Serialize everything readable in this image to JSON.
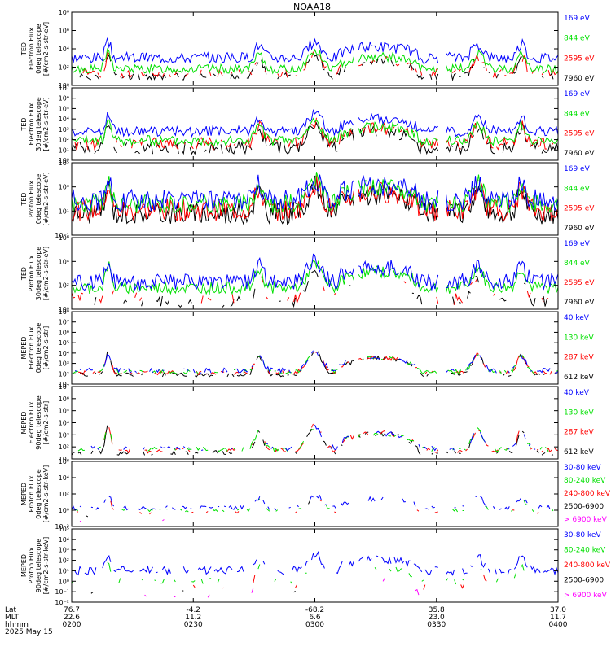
{
  "title": "NOAA18",
  "colors": {
    "blue": "#0000ff",
    "red": "#ff0000",
    "green": "#00e000",
    "black": "#000000",
    "magenta": "#ff00ff"
  },
  "x_axis": {
    "row_labels": [
      "Lat",
      "MLT",
      "hhmm"
    ],
    "ticks": [
      {
        "lat": "76.7",
        "mlt": "22.6",
        "hhmm": "0200"
      },
      {
        "lat": "-4.2",
        "mlt": "11.2",
        "hhmm": "0230"
      },
      {
        "lat": "-68.2",
        "mlt": "6.6",
        "hhmm": "0300"
      },
      {
        "lat": "35.8",
        "mlt": "23.0",
        "hhmm": "0330"
      },
      {
        "lat": "37.0",
        "mlt": "11.7",
        "hhmm": "0400"
      }
    ],
    "date": "2025 May 15"
  },
  "chart_data": [
    {
      "type": "line",
      "ylabel": [
        "TED",
        "Electron Flux",
        "0deg telescope",
        "[#/cm2-s-str-eV]"
      ],
      "ytick_labels": [
        "10⁰",
        "10²",
        "10⁴",
        "10⁶",
        "10⁸"
      ],
      "ylim_exp": [
        0,
        8
      ],
      "series": [
        {
          "name": "7960 eV",
          "color": "#000000",
          "level": 1.0,
          "amp": 0.4,
          "seed": 11,
          "sparse": 0.35
        },
        {
          "name": "2595 eV",
          "color": "#ff0000",
          "level": 1.3,
          "amp": 0.5,
          "seed": 12,
          "sparse": 0.35
        },
        {
          "name": "844 eV",
          "color": "#00e000",
          "level": 1.8,
          "amp": 0.5,
          "seed": 13,
          "sparse": 0.0
        },
        {
          "name": "169 eV",
          "color": "#0000ff",
          "level": 3.0,
          "amp": 0.6,
          "seed": 14,
          "sparse": 0.0
        }
      ]
    },
    {
      "type": "line",
      "ylabel": [
        "TED",
        "Electron Flux",
        "30deg telescope",
        "[#/cm2-s-str-eV]"
      ],
      "ytick_labels": [
        "10⁰",
        "10¹",
        "10²",
        "10³",
        "10⁴",
        "10⁵",
        "10⁶",
        "10⁷"
      ],
      "ylim_exp": [
        0,
        7
      ],
      "series": [
        {
          "name": "7960 eV",
          "color": "#000000",
          "level": 1.2,
          "amp": 0.6,
          "seed": 21,
          "sparse": 0.2
        },
        {
          "name": "2595 eV",
          "color": "#ff0000",
          "level": 1.6,
          "amp": 0.6,
          "seed": 22,
          "sparse": 0.2
        },
        {
          "name": "844 eV",
          "color": "#00e000",
          "level": 1.9,
          "amp": 0.5,
          "seed": 23,
          "sparse": 0.0
        },
        {
          "name": "169 eV",
          "color": "#0000ff",
          "level": 2.8,
          "amp": 0.5,
          "seed": 24,
          "sparse": 0.0
        }
      ]
    },
    {
      "type": "line",
      "ylabel": [
        "TED",
        "Proton Flux",
        "0deg telescope",
        "[#/cm2-s-str-eV]"
      ],
      "ytick_labels": [
        "10⁻¹",
        "10¹",
        "10³",
        "10⁵"
      ],
      "ylim_exp": [
        -1,
        5
      ],
      "series": [
        {
          "name": "7960 eV",
          "color": "#000000",
          "level": 0.8,
          "amp": 0.9,
          "seed": 31,
          "sparse": 0.0
        },
        {
          "name": "2595 eV",
          "color": "#ff0000",
          "level": 1.1,
          "amp": 0.9,
          "seed": 32,
          "sparse": 0.0
        },
        {
          "name": "844 eV",
          "color": "#00e000",
          "level": 1.6,
          "amp": 0.8,
          "seed": 33,
          "sparse": 0.0
        },
        {
          "name": "169 eV",
          "color": "#0000ff",
          "level": 1.9,
          "amp": 0.9,
          "seed": 34,
          "sparse": 0.0
        }
      ]
    },
    {
      "type": "line",
      "ylabel": [
        "TED",
        "Proton Flux",
        "30deg telescope",
        "[#/cm2-s-str-eV]"
      ],
      "ytick_labels": [
        "10⁰",
        "10²",
        "10⁴",
        "10⁶"
      ],
      "ylim_exp": [
        0,
        6
      ],
      "series": [
        {
          "name": "7960 eV",
          "color": "#000000",
          "level": 0.6,
          "amp": 0.5,
          "seed": 41,
          "sparse": 0.6
        },
        {
          "name": "2595 eV",
          "color": "#ff0000",
          "level": 0.9,
          "amp": 0.5,
          "seed": 42,
          "sparse": 0.6
        },
        {
          "name": "844 eV",
          "color": "#00e000",
          "level": 1.8,
          "amp": 0.5,
          "seed": 43,
          "sparse": 0.0
        },
        {
          "name": "169 eV",
          "color": "#0000ff",
          "level": 2.3,
          "amp": 0.7,
          "seed": 44,
          "sparse": 0.0
        }
      ]
    },
    {
      "type": "line",
      "ylabel": [
        "MEPED",
        "Electron Flux",
        "0deg telescope",
        "[#/cm2-s-str]"
      ],
      "ytick_labels": [
        "10¹",
        "10²",
        "10³",
        "10⁴",
        "10⁵",
        "10⁶",
        "10⁷",
        "10⁸"
      ],
      "ylim_exp": [
        1,
        8
      ],
      "series": [
        {
          "name": "612 keV",
          "color": "#000000",
          "level": 1.9,
          "amp": 0.2,
          "seed": 51,
          "sparse": 0.4
        },
        {
          "name": "287 keV",
          "color": "#ff0000",
          "level": 2.1,
          "amp": 0.2,
          "seed": 52,
          "sparse": 0.4
        },
        {
          "name": "130 keV",
          "color": "#00e000",
          "level": 2.2,
          "amp": 0.2,
          "seed": 53,
          "sparse": 0.4
        },
        {
          "name": "40 keV",
          "color": "#0000ff",
          "level": 2.3,
          "amp": 0.25,
          "seed": 54,
          "sparse": 0.4
        }
      ]
    },
    {
      "type": "line",
      "ylabel": [
        "MEPED",
        "Electron Flux",
        "90deg telescope",
        "[#/cm2-s-str]"
      ],
      "ytick_labels": [
        "10¹",
        "10²",
        "10³",
        "10⁴",
        "10⁵",
        "10⁶",
        "10⁷"
      ],
      "ylim_exp": [
        1,
        7
      ],
      "series": [
        {
          "name": "612 keV",
          "color": "#000000",
          "level": 1.5,
          "amp": 0.2,
          "seed": 61,
          "sparse": 0.5
        },
        {
          "name": "287 keV",
          "color": "#ff0000",
          "level": 1.7,
          "amp": 0.2,
          "seed": 62,
          "sparse": 0.5
        },
        {
          "name": "130 keV",
          "color": "#00e000",
          "level": 1.8,
          "amp": 0.2,
          "seed": 63,
          "sparse": 0.5
        },
        {
          "name": "40 keV",
          "color": "#0000ff",
          "level": 1.9,
          "amp": 0.2,
          "seed": 64,
          "sparse": 0.5
        }
      ]
    },
    {
      "type": "line",
      "ylabel": [
        "MEPED",
        "Proton Flux",
        "0deg telescope",
        "[#/cm2-s-str-keV]"
      ],
      "ytick_labels": [
        "10⁻²",
        "10⁰",
        "10²",
        "10⁴",
        "10⁶"
      ],
      "ylim_exp": [
        -2,
        6
      ],
      "series": [
        {
          "name": "> 6900 keV",
          "color": "#ff00ff",
          "level": -1.2,
          "amp": 0.2,
          "seed": 71,
          "sparse": 0.9
        },
        {
          "name": "2500-6900",
          "color": "#000000",
          "level": -0.6,
          "amp": 0.2,
          "seed": 72,
          "sparse": 0.9
        },
        {
          "name": "240-800 keV",
          "color": "#ff0000",
          "level": -0.3,
          "amp": 0.2,
          "seed": 73,
          "sparse": 0.8
        },
        {
          "name": "80-240 keV",
          "color": "#00e000",
          "level": 0.0,
          "amp": 0.2,
          "seed": 74,
          "sparse": 0.6
        },
        {
          "name": "30-80 keV",
          "color": "#0000ff",
          "level": 0.3,
          "amp": 0.3,
          "seed": 75,
          "sparse": 0.4
        }
      ]
    },
    {
      "type": "line",
      "ylabel": [
        "MEPED",
        "Proton Flux",
        "90deg telescope",
        "[#/cm2-s-str-keV]"
      ],
      "ytick_labels": [
        "10⁻²",
        "10⁻¹",
        "10⁰",
        "10¹",
        "10²",
        "10³",
        "10⁴",
        "10⁵"
      ],
      "ylim_exp": [
        -2,
        5
      ],
      "series": [
        {
          "name": "> 6900 keV",
          "color": "#ff00ff",
          "level": -1.4,
          "amp": 0.2,
          "seed": 81,
          "sparse": 0.9
        },
        {
          "name": "2500-6900",
          "color": "#000000",
          "level": -1.0,
          "amp": 0.2,
          "seed": 82,
          "sparse": 0.9
        },
        {
          "name": "240-800 keV",
          "color": "#ff0000",
          "level": -0.5,
          "amp": 0.3,
          "seed": 83,
          "sparse": 0.8
        },
        {
          "name": "80-240 keV",
          "color": "#00e000",
          "level": 0.0,
          "amp": 0.3,
          "seed": 84,
          "sparse": 0.6
        },
        {
          "name": "30-80 keV",
          "color": "#0000ff",
          "level": 1.0,
          "amp": 0.4,
          "seed": 85,
          "sparse": 0.2
        }
      ]
    }
  ]
}
